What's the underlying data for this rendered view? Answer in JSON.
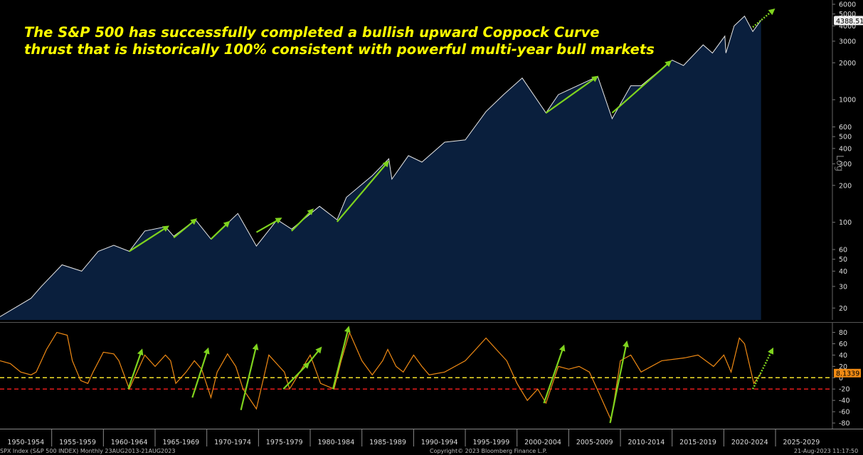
{
  "headline": {
    "line1": "The S&P 500 has successfully completed a bullish upward Coppock Curve",
    "line2": "thrust that is historically 100% consistent with powerful multi-year bull markets"
  },
  "footer": {
    "left": "SPX Index (S&P 500 INDEX)  Monthly 23AUG2013-21AUG2023",
    "center": "Copyright© 2023 Bloomberg Finance L.P.",
    "right": "21-Aug-2023 11:17:50"
  },
  "axis_scale_label": "Log",
  "colors": {
    "price_fill": "#0a1f3d",
    "price_line": "#e8e8e8",
    "coppock_line": "#f08a14",
    "arrow": "#7fd31e",
    "upper_ref": "#f5e22a",
    "lower_ref": "#e51b1b",
    "last_value_bg": "#f08a14"
  },
  "chart_data": [
    {
      "type": "area",
      "yscale": "log",
      "ylim": [
        16,
        6500
      ],
      "xlim": [
        1950,
        2030.5
      ],
      "y_ticks": [
        20,
        30,
        40,
        50,
        60,
        100,
        200,
        300,
        400,
        500,
        600,
        1000,
        2000,
        3000,
        4000,
        5000,
        6000
      ],
      "last_value_label": "4388.51",
      "series": [
        {
          "x": [
            1950,
            1953,
            1954,
            1956,
            1957.9,
            1959.5,
            1961,
            1962.5,
            1964,
            1966,
            1966.8,
            1968.9,
            1970.4,
            1973,
            1974.8,
            1976.8,
            1978.2,
            1980.9,
            1982.6,
            1983.5,
            1986,
            1987.6,
            1987.9,
            1989.5,
            1990.8,
            1993,
            1995,
            1997,
            1998.7,
            2000.5,
            2002.8,
            2004,
            2007.8,
            2009.2,
            2011,
            2012,
            2015,
            2016.1,
            2018,
            2018.9,
            2020.1,
            2020.2,
            2021,
            2022,
            2022.8,
            2023.6
          ],
          "y": [
            17,
            24,
            30,
            45,
            40,
            58,
            65,
            58,
            85,
            92,
            77,
            105,
            73,
            118,
            64,
            105,
            88,
            135,
            105,
            160,
            240,
            330,
            225,
            350,
            310,
            450,
            470,
            800,
            1100,
            1500,
            780,
            1100,
            1550,
            700,
            1300,
            1300,
            2100,
            1900,
            2800,
            2400,
            3300,
            2400,
            4000,
            4800,
            3600,
            4450
          ]
        }
      ],
      "arrows": [
        {
          "x1": 1962.5,
          "y1": 58,
          "x2": 1966.2,
          "y2": 92
        },
        {
          "x1": 1966.8,
          "y1": 75,
          "x2": 1968.9,
          "y2": 105
        },
        {
          "x1": 1970.4,
          "y1": 73,
          "x2": 1972.1,
          "y2": 100
        },
        {
          "x1": 1974.8,
          "y1": 83,
          "x2": 1977.1,
          "y2": 107
        },
        {
          "x1": 1978.2,
          "y1": 85,
          "x2": 1980.2,
          "y2": 126
        },
        {
          "x1": 1982.6,
          "y1": 101,
          "x2": 1987.5,
          "y2": 310
        },
        {
          "x1": 2002.8,
          "y1": 780,
          "x2": 2007.7,
          "y2": 1530
        },
        {
          "x1": 2009.2,
          "y1": 780,
          "x2": 2014.8,
          "y2": 2040
        }
      ],
      "projected_arrow": {
        "x1": 2022.8,
        "y1": 3900,
        "x2": 2024.8,
        "y2": 5400
      }
    },
    {
      "type": "line",
      "ylim": [
        -90,
        92
      ],
      "xlim": [
        1950,
        2030.5
      ],
      "y_ticks": [
        -80,
        -60,
        -40,
        -20,
        0,
        20,
        40,
        60,
        80
      ],
      "last_value_label": "8.1339",
      "reference_lines": [
        {
          "y": 0,
          "style": "dashed",
          "color": "yellow"
        },
        {
          "y": -20,
          "style": "dashed",
          "color": "red"
        }
      ],
      "series": [
        {
          "x": [
            1950,
            1951,
            1952,
            1953,
            1953.5,
            1954.5,
            1955.5,
            1956.5,
            1957,
            1957.8,
            1958.5,
            1959,
            1960,
            1961,
            1961.5,
            1962.5,
            1963.5,
            1964,
            1965,
            1966,
            1966.5,
            1967,
            1968,
            1968.8,
            1969.5,
            1970.4,
            1971,
            1972,
            1972.8,
            1973.5,
            1974.8,
            1975.5,
            1976,
            1977,
            1977.5,
            1978,
            1979,
            1980,
            1981,
            1982.3,
            1983,
            1983.8,
            1985,
            1986,
            1987,
            1987.5,
            1988.3,
            1989,
            1990,
            1990.8,
            1991.5,
            1993,
            1995,
            1996,
            1997,
            1998,
            1999,
            2000,
            2001,
            2002,
            2002.8,
            2004,
            2005,
            2006,
            2007,
            2008,
            2009.1,
            2010,
            2011,
            2012,
            2014,
            2016.2,
            2017.5,
            2019,
            2020,
            2020.7,
            2021.5,
            2022,
            2022.9,
            2023.6
          ],
          "y": [
            30,
            25,
            10,
            5,
            10,
            50,
            80,
            75,
            30,
            -5,
            -10,
            10,
            45,
            42,
            30,
            -20,
            20,
            40,
            20,
            40,
            30,
            -10,
            10,
            30,
            15,
            -35,
            10,
            42,
            20,
            -20,
            -55,
            0,
            40,
            20,
            10,
            -20,
            10,
            40,
            -10,
            -20,
            30,
            80,
            30,
            5,
            30,
            50,
            20,
            10,
            40,
            20,
            5,
            10,
            30,
            50,
            70,
            50,
            30,
            -10,
            -40,
            -20,
            -45,
            20,
            15,
            20,
            10,
            -30,
            -75,
            30,
            40,
            10,
            30,
            35,
            40,
            20,
            40,
            10,
            70,
            60,
            -10,
            8
          ]
        }
      ],
      "arrows": [
        {
          "x1": 1962.4,
          "y1": -20,
          "x2": 1963.7,
          "y2": 48
        },
        {
          "x1": 1968.6,
          "y1": -35,
          "x2": 1970.1,
          "y2": 50
        },
        {
          "x1": 1973.3,
          "y1": -57,
          "x2": 1974.8,
          "y2": 57
        },
        {
          "x1": 1977.4,
          "y1": -20,
          "x2": 1979.8,
          "y2": 25
        },
        {
          "x1": 1979.8,
          "y1": 25,
          "x2": 1981.0,
          "y2": 52
        },
        {
          "x1": 1982.2,
          "y1": -20,
          "x2": 1983.7,
          "y2": 88
        },
        {
          "x1": 2002.6,
          "y1": -45,
          "x2": 2004.5,
          "y2": 55
        },
        {
          "x1": 2009.0,
          "y1": -80,
          "x2": 2010.6,
          "y2": 62
        }
      ],
      "projected_arrow": {
        "x1": 2022.8,
        "y1": -20,
        "x2": 2024.7,
        "y2": 50
      }
    }
  ],
  "x_axis": {
    "labels": [
      "1950-1954",
      "1955-1959",
      "1960-1964",
      "1965-1969",
      "1970-1974",
      "1975-1979",
      "1980-1984",
      "1985-1989",
      "1990-1994",
      "1995-1999",
      "2000-2004",
      "2005-2009",
      "2010-2014",
      "2015-2019",
      "2020-2024",
      "2025-2029"
    ]
  }
}
